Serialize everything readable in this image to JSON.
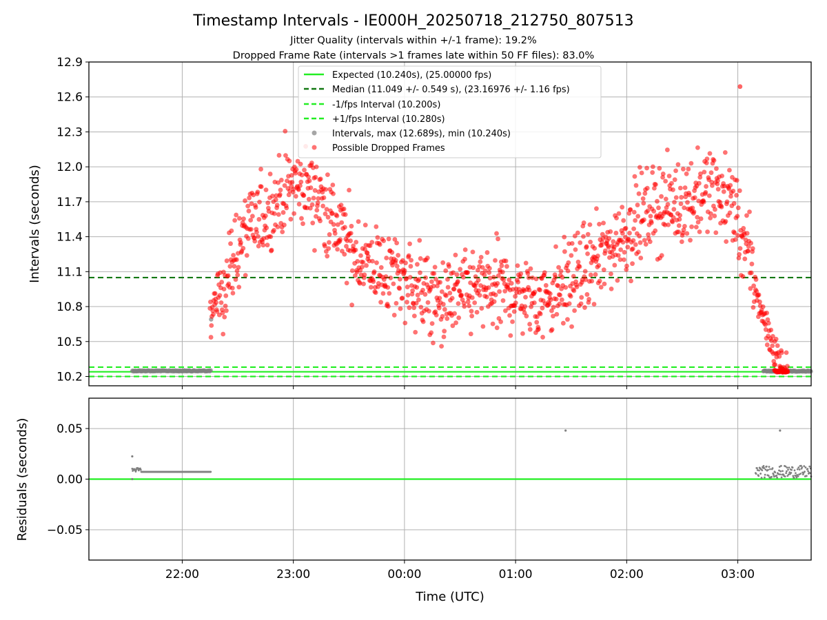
{
  "chart_data": {
    "type": "scatter",
    "title": "Timestamp Intervals - IE000H_20250718_212750_807513",
    "subtitles": [
      "Jitter Quality (intervals within +/-1 frame): 19.2%",
      "Dropped Frame Rate (intervals >1 frames late within 50 FF files): 83.0%"
    ],
    "xlabel": "Time (UTC)",
    "x_ticks": [
      "22:00",
      "23:00",
      "00:00",
      "01:00",
      "02:00",
      "03:00"
    ],
    "xlim_hours": [
      21.16,
      27.66
    ],
    "grid": true,
    "legend_location": "upper center",
    "colors": {
      "expected": "#22ee22",
      "median": "#117711",
      "interval_points": "#808080",
      "dropped_points": "#ff0000",
      "grid": "#b0b0b0"
    },
    "top_panel": {
      "ylabel": "Intervals (seconds)",
      "ylim": [
        10.12,
        12.9
      ],
      "y_ticks": [
        "12.9",
        "12.6",
        "12.3",
        "12.0",
        "11.7",
        "11.4",
        "11.1",
        "10.8",
        "10.5",
        "10.2"
      ],
      "reference_lines": [
        {
          "label": "Expected (10.240s), (25.00000 fps)",
          "y": 10.24,
          "style": "solid",
          "color": "#22ee22"
        },
        {
          "label": "Median (11.049 +/- 0.549 s), (23.16976 +/- 1.16 fps)",
          "y": 11.049,
          "style": "dashed",
          "color": "#117711"
        },
        {
          "label": "-1/fps Interval (10.200s)",
          "y": 10.2,
          "style": "dashed",
          "color": "#22ee22"
        },
        {
          "label": "+1/fps Interval (10.280s)",
          "y": 10.28,
          "style": "dashed",
          "color": "#22ee22"
        }
      ],
      "series": [
        {
          "name": "Intervals, max (12.689s), min (10.240s)",
          "color": "#808080",
          "marker": "circle",
          "segments": [
            {
              "x_start_hour": 21.55,
              "x_end_hour": 22.26,
              "y": 10.248
            },
            {
              "x_start_hour": 27.23,
              "x_end_hour": 27.66,
              "y": 10.246
            }
          ],
          "extra_points": [
            {
              "x_hour": 22.26,
              "y": 10.69
            }
          ]
        },
        {
          "name": "Possible Dropped Frames",
          "color": "#ff0000",
          "marker": "circle",
          "trend": [
            [
              22.25,
              10.72
            ],
            [
              22.4,
              11.05
            ],
            [
              22.55,
              11.4
            ],
            [
              22.75,
              11.6
            ],
            [
              23.0,
              11.85
            ],
            [
              23.2,
              11.8
            ],
            [
              23.35,
              11.55
            ],
            [
              23.55,
              11.25
            ],
            [
              23.8,
              11.1
            ],
            [
              24.0,
              11.05
            ],
            [
              24.3,
              10.82
            ],
            [
              24.5,
              10.9
            ],
            [
              24.75,
              10.95
            ],
            [
              25.0,
              10.92
            ],
            [
              25.2,
              10.85
            ],
            [
              25.4,
              10.95
            ],
            [
              25.6,
              11.1
            ],
            [
              25.8,
              11.25
            ],
            [
              26.0,
              11.45
            ],
            [
              26.25,
              11.65
            ],
            [
              26.5,
              11.7
            ],
            [
              26.75,
              11.8
            ],
            [
              26.95,
              11.7
            ],
            [
              27.1,
              11.2
            ],
            [
              27.2,
              10.8
            ],
            [
              27.3,
              10.5
            ],
            [
              27.4,
              10.25
            ]
          ],
          "max_point": {
            "x_hour": 27.02,
            "y": 12.689
          },
          "x_range_hours": [
            22.25,
            27.45
          ],
          "spread": 0.18
        }
      ]
    },
    "bottom_panel": {
      "ylabel": "Residuals (seconds)",
      "ylim": [
        -0.08,
        0.08
      ],
      "y_ticks": [
        "0.05",
        "0.00",
        "−0.05"
      ],
      "zero_line": {
        "y": 0.0,
        "color": "#22ee22"
      },
      "series": [
        {
          "name": "Residuals",
          "color": "#808080",
          "segments": [
            {
              "x_start_hour": 21.55,
              "x_end_hour": 22.26,
              "y": 0.0072
            },
            {
              "x_start_hour": 27.16,
              "x_end_hour": 27.66,
              "y": 0.006
            }
          ],
          "extra_points": [
            {
              "x_hour": 21.55,
              "y": 0.0225
            },
            {
              "x_hour": 21.55,
              "y": 0.0
            },
            {
              "x_hour": 25.45,
              "y": 0.048
            },
            {
              "x_hour": 27.38,
              "y": 0.048
            }
          ]
        }
      ]
    }
  }
}
